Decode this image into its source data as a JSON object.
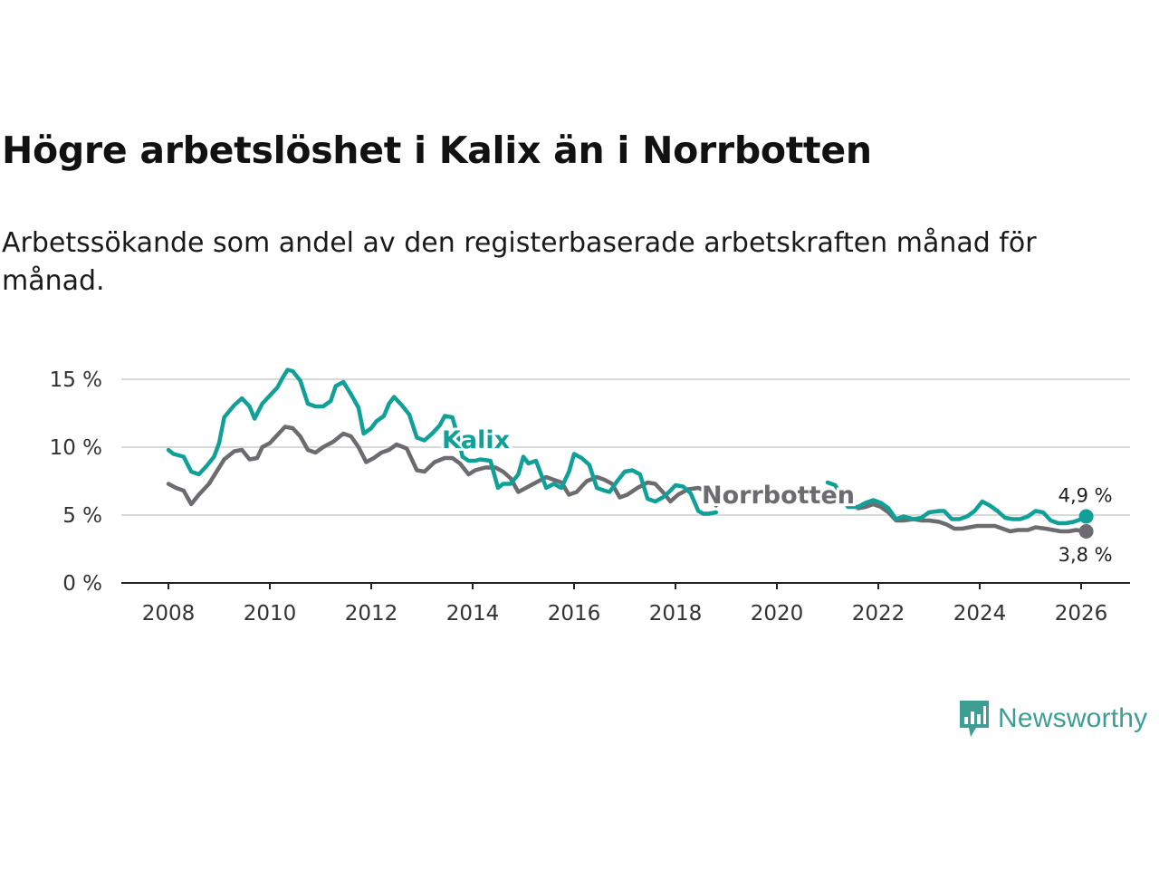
{
  "title": "Högre arbetslöshet i Kalix än i Norrbotten",
  "subtitle": "Arbetssökande som andel av den registerbaserade arbetskraften månad för månad.",
  "logo": {
    "name": "Newsworthy",
    "icon": "bar-chart-icon",
    "color": "#3d9e93"
  },
  "chart_data": {
    "type": "line",
    "x_ticks": [
      "2008",
      "2010",
      "2012",
      "2014",
      "2016",
      "2018",
      "2020",
      "2022",
      "2024",
      "2026"
    ],
    "y_ticks": [
      "0 %",
      "5 %",
      "10 %",
      "15 %"
    ],
    "xlim": [
      2007.5,
      2027.0
    ],
    "ylim": [
      0,
      15.5
    ],
    "unit": "%",
    "grid": true,
    "series": [
      {
        "name": "Kalix",
        "color": "#10a097",
        "end_label": "4,9 %",
        "points": [
          [
            2008.0,
            9.8
          ],
          [
            2008.1,
            9.5
          ],
          [
            2008.3,
            9.3
          ],
          [
            2008.45,
            8.2
          ],
          [
            2008.6,
            8.0
          ],
          [
            2008.75,
            8.6
          ],
          [
            2008.9,
            9.3
          ],
          [
            2009.0,
            10.3
          ],
          [
            2009.1,
            12.2
          ],
          [
            2009.3,
            13.1
          ],
          [
            2009.45,
            13.6
          ],
          [
            2009.6,
            13.0
          ],
          [
            2009.7,
            12.1
          ],
          [
            2009.85,
            13.2
          ],
          [
            2010.0,
            13.8
          ],
          [
            2010.15,
            14.4
          ],
          [
            2010.25,
            15.1
          ],
          [
            2010.35,
            15.7
          ],
          [
            2010.45,
            15.6
          ],
          [
            2010.6,
            14.9
          ],
          [
            2010.75,
            13.2
          ],
          [
            2010.9,
            13.0
          ],
          [
            2011.05,
            13.0
          ],
          [
            2011.2,
            13.4
          ],
          [
            2011.3,
            14.5
          ],
          [
            2011.45,
            14.8
          ],
          [
            2011.6,
            13.9
          ],
          [
            2011.75,
            12.9
          ],
          [
            2011.85,
            11.0
          ],
          [
            2012.0,
            11.4
          ],
          [
            2012.1,
            11.9
          ],
          [
            2012.25,
            12.3
          ],
          [
            2012.35,
            13.2
          ],
          [
            2012.45,
            13.7
          ],
          [
            2012.6,
            13.1
          ],
          [
            2012.75,
            12.4
          ],
          [
            2012.9,
            10.7
          ],
          [
            2013.05,
            10.5
          ],
          [
            2013.2,
            11.0
          ],
          [
            2013.35,
            11.6
          ],
          [
            2013.45,
            12.3
          ],
          [
            2013.6,
            12.2
          ],
          [
            2013.7,
            10.9
          ],
          [
            2013.8,
            9.3
          ],
          [
            2013.92,
            9.0
          ],
          [
            2014.05,
            9.0
          ],
          [
            2014.15,
            9.1
          ],
          [
            2014.35,
            9.0
          ],
          [
            2014.5,
            7.0
          ],
          [
            2014.6,
            7.3
          ],
          [
            2014.75,
            7.3
          ],
          [
            2014.9,
            8.0
          ],
          [
            2015.0,
            9.3
          ],
          [
            2015.1,
            8.8
          ],
          [
            2015.25,
            9.0
          ],
          [
            2015.35,
            8.0
          ],
          [
            2015.45,
            7.0
          ],
          [
            2015.6,
            7.3
          ],
          [
            2015.75,
            7.0
          ],
          [
            2015.9,
            8.2
          ],
          [
            2016.0,
            9.5
          ],
          [
            2016.15,
            9.2
          ],
          [
            2016.3,
            8.7
          ],
          [
            2016.45,
            7.0
          ],
          [
            2016.6,
            6.8
          ],
          [
            2016.7,
            6.7
          ],
          [
            2016.85,
            7.5
          ],
          [
            2017.0,
            8.2
          ],
          [
            2017.15,
            8.3
          ],
          [
            2017.3,
            8.0
          ],
          [
            2017.45,
            6.2
          ],
          [
            2017.6,
            6.0
          ],
          [
            2017.75,
            6.3
          ],
          [
            2017.9,
            6.8
          ],
          [
            2018.0,
            7.2
          ],
          [
            2018.15,
            7.1
          ],
          [
            2018.3,
            6.6
          ],
          [
            2018.45,
            5.3
          ],
          [
            2018.55,
            5.1
          ],
          [
            2018.65,
            5.1
          ],
          [
            2018.8,
            5.2
          ],
          [
            2021.0,
            7.4
          ],
          [
            2021.15,
            7.2
          ],
          [
            2021.4,
            5.6
          ],
          [
            2021.6,
            5.6
          ],
          [
            2021.75,
            5.9
          ],
          [
            2021.9,
            6.1
          ],
          [
            2022.05,
            5.9
          ],
          [
            2022.2,
            5.5
          ],
          [
            2022.35,
            4.7
          ],
          [
            2022.5,
            4.9
          ],
          [
            2022.7,
            4.7
          ],
          [
            2022.85,
            4.8
          ],
          [
            2023.0,
            5.2
          ],
          [
            2023.2,
            5.3
          ],
          [
            2023.3,
            5.3
          ],
          [
            2023.45,
            4.7
          ],
          [
            2023.6,
            4.7
          ],
          [
            2023.75,
            4.9
          ],
          [
            2023.9,
            5.3
          ],
          [
            2024.05,
            6.0
          ],
          [
            2024.2,
            5.7
          ],
          [
            2024.35,
            5.3
          ],
          [
            2024.5,
            4.8
          ],
          [
            2024.65,
            4.7
          ],
          [
            2024.8,
            4.7
          ],
          [
            2024.95,
            4.9
          ],
          [
            2025.1,
            5.3
          ],
          [
            2025.25,
            5.2
          ],
          [
            2025.4,
            4.6
          ],
          [
            2025.55,
            4.4
          ],
          [
            2025.7,
            4.4
          ],
          [
            2025.85,
            4.5
          ],
          [
            2026.0,
            4.7
          ],
          [
            2026.1,
            4.9
          ]
        ]
      },
      {
        "name": "Norrbotten",
        "color": "#6c6c70",
        "end_label": "3,8 %",
        "points": [
          [
            2008.0,
            7.3
          ],
          [
            2008.15,
            7.0
          ],
          [
            2008.3,
            6.8
          ],
          [
            2008.45,
            5.8
          ],
          [
            2008.6,
            6.5
          ],
          [
            2008.8,
            7.3
          ],
          [
            2008.95,
            8.2
          ],
          [
            2009.1,
            9.1
          ],
          [
            2009.3,
            9.7
          ],
          [
            2009.45,
            9.8
          ],
          [
            2009.6,
            9.1
          ],
          [
            2009.75,
            9.2
          ],
          [
            2009.85,
            10.0
          ],
          [
            2010.0,
            10.3
          ],
          [
            2010.15,
            10.9
          ],
          [
            2010.3,
            11.5
          ],
          [
            2010.45,
            11.4
          ],
          [
            2010.6,
            10.8
          ],
          [
            2010.75,
            9.8
          ],
          [
            2010.9,
            9.6
          ],
          [
            2011.05,
            10.0
          ],
          [
            2011.25,
            10.4
          ],
          [
            2011.45,
            11.0
          ],
          [
            2011.6,
            10.8
          ],
          [
            2011.75,
            10.0
          ],
          [
            2011.9,
            8.9
          ],
          [
            2012.05,
            9.2
          ],
          [
            2012.2,
            9.6
          ],
          [
            2012.35,
            9.8
          ],
          [
            2012.5,
            10.2
          ],
          [
            2012.7,
            9.9
          ],
          [
            2012.9,
            8.3
          ],
          [
            2013.05,
            8.2
          ],
          [
            2013.25,
            8.9
          ],
          [
            2013.45,
            9.2
          ],
          [
            2013.6,
            9.2
          ],
          [
            2013.75,
            8.8
          ],
          [
            2013.92,
            8.0
          ],
          [
            2014.05,
            8.3
          ],
          [
            2014.25,
            8.5
          ],
          [
            2014.45,
            8.5
          ],
          [
            2014.6,
            8.2
          ],
          [
            2014.75,
            7.7
          ],
          [
            2014.9,
            6.7
          ],
          [
            2015.05,
            7.0
          ],
          [
            2015.25,
            7.4
          ],
          [
            2015.45,
            7.8
          ],
          [
            2015.6,
            7.6
          ],
          [
            2015.75,
            7.4
          ],
          [
            2015.9,
            6.5
          ],
          [
            2016.05,
            6.7
          ],
          [
            2016.25,
            7.5
          ],
          [
            2016.45,
            7.8
          ],
          [
            2016.6,
            7.6
          ],
          [
            2016.75,
            7.3
          ],
          [
            2016.9,
            6.3
          ],
          [
            2017.05,
            6.5
          ],
          [
            2017.25,
            7.0
          ],
          [
            2017.45,
            7.4
          ],
          [
            2017.6,
            7.3
          ],
          [
            2017.75,
            6.7
          ],
          [
            2017.9,
            6.0
          ],
          [
            2018.05,
            6.5
          ],
          [
            2018.25,
            6.9
          ],
          [
            2018.45,
            7.0
          ],
          [
            2018.65,
            6.7
          ],
          [
            2018.8,
            5.7
          ],
          [
            2021.6,
            5.5
          ],
          [
            2021.75,
            5.6
          ],
          [
            2021.9,
            5.8
          ],
          [
            2022.05,
            5.6
          ],
          [
            2022.2,
            5.2
          ],
          [
            2022.35,
            4.6
          ],
          [
            2022.5,
            4.6
          ],
          [
            2022.7,
            4.7
          ],
          [
            2022.85,
            4.6
          ],
          [
            2023.0,
            4.6
          ],
          [
            2023.2,
            4.5
          ],
          [
            2023.35,
            4.3
          ],
          [
            2023.5,
            4.0
          ],
          [
            2023.65,
            4.0
          ],
          [
            2023.8,
            4.1
          ],
          [
            2023.95,
            4.2
          ],
          [
            2024.1,
            4.2
          ],
          [
            2024.3,
            4.2
          ],
          [
            2024.45,
            4.0
          ],
          [
            2024.6,
            3.8
          ],
          [
            2024.75,
            3.9
          ],
          [
            2024.95,
            3.9
          ],
          [
            2025.1,
            4.1
          ],
          [
            2025.3,
            4.0
          ],
          [
            2025.45,
            3.9
          ],
          [
            2025.6,
            3.8
          ],
          [
            2025.75,
            3.8
          ],
          [
            2025.9,
            3.9
          ],
          [
            2026.1,
            3.8
          ]
        ]
      }
    ]
  }
}
